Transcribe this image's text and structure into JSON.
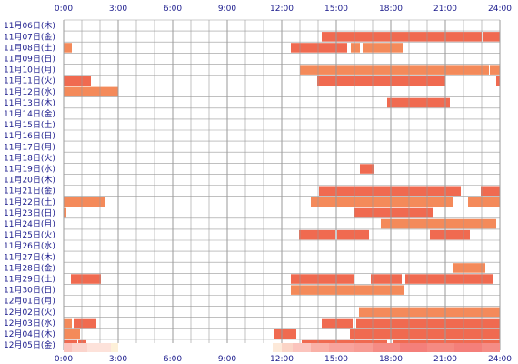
{
  "chart_data": {
    "type": "heatmap",
    "x_ticks": [
      "0:00",
      "3:00",
      "6:00",
      "9:00",
      "12:00",
      "15:00",
      "18:00",
      "21:00",
      "24:00"
    ],
    "x_range_hours": [
      0,
      24
    ],
    "grid": true,
    "rows": [
      {
        "label": "11月06日(木)",
        "intervals": []
      },
      {
        "label": "11月07日(金)",
        "intervals": [
          [
            14.2,
            23.0,
            "#f06a50"
          ],
          [
            23.05,
            24.0,
            "#f06a50"
          ]
        ]
      },
      {
        "label": "11月08日(土)",
        "intervals": [
          [
            0.0,
            0.45,
            "#f48a5a"
          ],
          [
            12.5,
            15.6,
            "#f06a50"
          ],
          [
            15.8,
            16.3,
            "#f48a5a"
          ],
          [
            16.45,
            18.65,
            "#f48a5a"
          ]
        ]
      },
      {
        "label": "11月09日(日)",
        "intervals": []
      },
      {
        "label": "11月10日(月)",
        "intervals": [
          [
            13.0,
            23.4,
            "#f48a5a"
          ],
          [
            23.45,
            24.0,
            "#f48a5a"
          ]
        ]
      },
      {
        "label": "11月11日(火)",
        "intervals": [
          [
            0.0,
            1.5,
            "#f06a50"
          ],
          [
            13.95,
            21.0,
            "#f06a50"
          ],
          [
            23.8,
            24.0,
            "#f06a50"
          ]
        ]
      },
      {
        "label": "11月12日(水)",
        "intervals": [
          [
            0.0,
            3.0,
            "#f48a5a"
          ]
        ]
      },
      {
        "label": "11月13日(木)",
        "intervals": [
          [
            17.8,
            21.25,
            "#f06a50"
          ]
        ]
      },
      {
        "label": "11月14日(金)",
        "intervals": []
      },
      {
        "label": "11月15日(土)",
        "intervals": []
      },
      {
        "label": "11月16日(日)",
        "intervals": []
      },
      {
        "label": "11月17日(月)",
        "intervals": []
      },
      {
        "label": "11月18日(火)",
        "intervals": []
      },
      {
        "label": "11月19日(水)",
        "intervals": [
          [
            16.3,
            17.1,
            "#f06a50"
          ]
        ]
      },
      {
        "label": "11月20日(木)",
        "intervals": []
      },
      {
        "label": "11月21日(金)",
        "intervals": [
          [
            14.05,
            21.85,
            "#f06a50"
          ],
          [
            22.95,
            24.0,
            "#f06a50"
          ]
        ]
      },
      {
        "label": "11月22日(土)",
        "intervals": [
          [
            0.0,
            2.3,
            "#f48a5a"
          ],
          [
            13.6,
            21.45,
            "#f48a5a"
          ],
          [
            22.25,
            24.0,
            "#f48a5a"
          ]
        ]
      },
      {
        "label": "11月23日(日)",
        "intervals": [
          [
            0.0,
            0.15,
            "#f48a5a"
          ],
          [
            15.95,
            20.3,
            "#f06a50"
          ]
        ]
      },
      {
        "label": "11月24日(月)",
        "intervals": [
          [
            17.45,
            23.8,
            "#f48a5a"
          ]
        ]
      },
      {
        "label": "11月25日(火)",
        "intervals": [
          [
            12.95,
            14.95,
            "#f06a50"
          ],
          [
            15.05,
            16.8,
            "#f06a50"
          ],
          [
            20.15,
            22.35,
            "#f06a50"
          ]
        ]
      },
      {
        "label": "11月26日(水)",
        "intervals": []
      },
      {
        "label": "11月27日(木)",
        "intervals": []
      },
      {
        "label": "11月28日(金)",
        "intervals": [
          [
            21.4,
            23.2,
            "#f48a5a"
          ]
        ]
      },
      {
        "label": "11月29日(土)",
        "intervals": [
          [
            0.4,
            2.05,
            "#f06a50"
          ],
          [
            12.5,
            16.0,
            "#f06a50"
          ],
          [
            16.9,
            18.6,
            "#f06a50"
          ],
          [
            18.8,
            23.6,
            "#f06a50"
          ]
        ]
      },
      {
        "label": "11月30日(日)",
        "intervals": [
          [
            12.5,
            18.75,
            "#f48a5a"
          ]
        ]
      },
      {
        "label": "12月01日(月)",
        "intervals": []
      },
      {
        "label": "12月02日(火)",
        "intervals": [
          [
            16.25,
            24.0,
            "#f48a5a"
          ]
        ]
      },
      {
        "label": "12月03日(水)",
        "intervals": [
          [
            0.0,
            0.45,
            "#f48a5a"
          ],
          [
            0.55,
            1.8,
            "#f06a50"
          ],
          [
            14.2,
            15.9,
            "#f06a50"
          ],
          [
            16.1,
            24.0,
            "#f06a50"
          ]
        ]
      },
      {
        "label": "12月04日(木)",
        "intervals": [
          [
            0.0,
            0.9,
            "#f48a5a"
          ],
          [
            11.55,
            12.8,
            "#f06a50"
          ],
          [
            15.75,
            24.0,
            "#f06a50"
          ]
        ]
      },
      {
        "label": "12月05日(金)",
        "intervals": [
          [
            0.0,
            0.75,
            "#f06a50"
          ],
          [
            0.8,
            1.25,
            "#f06a50"
          ],
          [
            13.1,
            17.8,
            "#f06a50"
          ],
          [
            18.1,
            24.0,
            "#f06a50"
          ]
        ]
      }
    ],
    "summary_bar": [
      [
        0.0,
        0.45,
        "#fbc4bd"
      ],
      [
        0.45,
        1.3,
        "#fbd4cc"
      ],
      [
        1.3,
        2.6,
        "#fde2da"
      ],
      [
        2.6,
        3.0,
        "#fdf0d8"
      ],
      [
        11.5,
        12.0,
        "#fde9d9"
      ],
      [
        12.0,
        12.6,
        "#fbd4c6"
      ],
      [
        12.6,
        13.6,
        "#fbc4bd"
      ],
      [
        13.6,
        14.6,
        "#f9b0a6"
      ],
      [
        14.6,
        16.0,
        "#f8a39c"
      ],
      [
        16.0,
        17.0,
        "#f79c94"
      ],
      [
        17.0,
        18.5,
        "#f58c85"
      ],
      [
        18.5,
        20.0,
        "#f47f7a"
      ],
      [
        20.0,
        21.5,
        "#f58a82"
      ],
      [
        21.5,
        23.0,
        "#f47f7a"
      ],
      [
        23.0,
        24.0,
        "#f58c85"
      ]
    ],
    "colors": {
      "activity_dark": "#f06a50",
      "activity_light": "#f48a5a",
      "grid_line": "#9a9a9a",
      "axis_text": "#1a1a8c"
    }
  }
}
